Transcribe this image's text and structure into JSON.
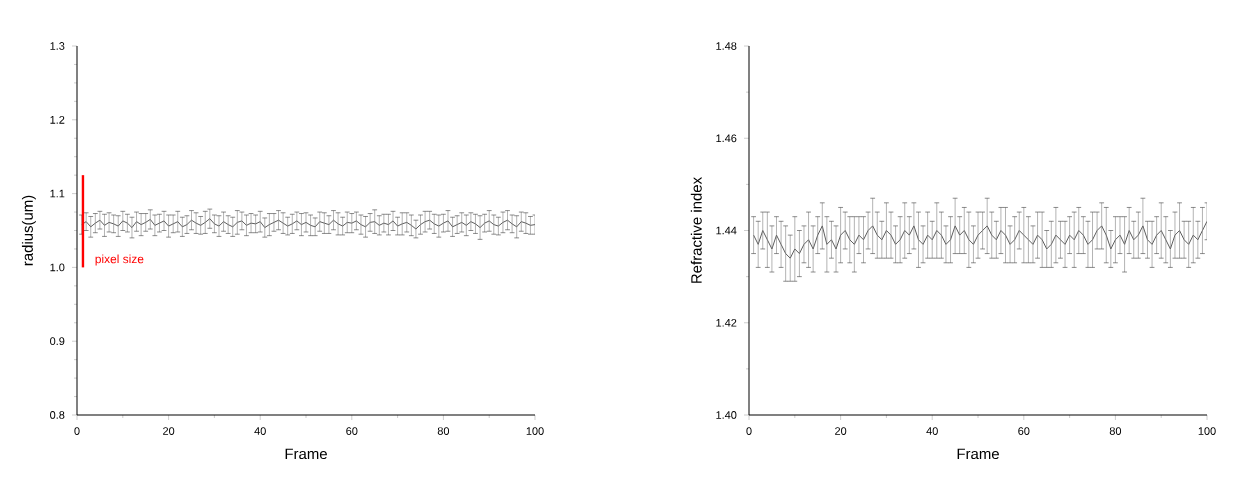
{
  "chart_data": [
    {
      "type": "line",
      "xlabel": "Frame",
      "ylabel": "radius(um)",
      "line_style": "solid",
      "xlim": [
        0,
        100
      ],
      "ylim": [
        0.8,
        1.3
      ],
      "xticks": [
        0,
        20,
        40,
        60,
        80,
        100
      ],
      "yticks": [
        0.8,
        0.9,
        {
          "value": 1.0,
          "label": "1.0"
        },
        1.1,
        1.2,
        1.3
      ],
      "x": [
        1,
        2,
        3,
        4,
        5,
        6,
        7,
        8,
        9,
        10,
        11,
        12,
        13,
        14,
        15,
        16,
        17,
        18,
        19,
        20,
        21,
        22,
        23,
        24,
        25,
        26,
        27,
        28,
        29,
        30,
        31,
        32,
        33,
        34,
        35,
        36,
        37,
        38,
        39,
        40,
        41,
        42,
        43,
        44,
        45,
        46,
        47,
        48,
        49,
        50,
        51,
        52,
        53,
        54,
        55,
        56,
        57,
        58,
        59,
        60,
        61,
        62,
        63,
        64,
        65,
        66,
        67,
        68,
        69,
        70,
        71,
        72,
        73,
        74,
        75,
        76,
        77,
        78,
        79,
        80,
        81,
        82,
        83,
        84,
        85,
        86,
        87,
        88,
        89,
        90,
        91,
        92,
        93,
        94,
        95,
        96,
        97,
        98,
        99,
        100
      ],
      "series": [
        {
          "color": "#333333",
          "values": [
            1.058,
            1.062,
            1.055,
            1.06,
            1.064,
            1.057,
            1.061,
            1.059,
            1.056,
            1.063,
            1.06,
            1.054,
            1.062,
            1.058,
            1.061,
            1.065,
            1.057,
            1.06,
            1.063,
            1.056,
            1.059,
            1.062,
            1.055,
            1.058,
            1.064,
            1.06,
            1.057,
            1.061,
            1.066,
            1.059,
            1.056,
            1.062,
            1.058,
            1.055,
            1.061,
            1.063,
            1.057,
            1.06,
            1.059,
            1.062,
            1.054,
            1.058,
            1.061,
            1.064,
            1.06,
            1.056,
            1.059,
            1.063,
            1.058,
            1.061,
            1.057,
            1.055,
            1.062,
            1.06,
            1.058,
            1.064,
            1.059,
            1.056,
            1.061,
            1.06,
            1.063,
            1.058,
            1.055,
            1.061,
            1.062,
            1.057,
            1.06,
            1.058,
            1.063,
            1.056,
            1.059,
            1.061,
            1.057,
            1.052,
            1.058,
            1.062,
            1.064,
            1.059,
            1.056,
            1.06,
            1.063,
            1.055,
            1.058,
            1.061,
            1.057,
            1.062,
            1.059,
            1.054,
            1.06,
            1.063,
            1.058,
            1.056,
            1.061,
            1.064,
            1.059,
            1.055,
            1.062,
            1.06,
            1.057,
            1.058
          ],
          "errors": [
            0.013,
            0.012,
            0.014,
            0.013,
            0.012,
            0.015,
            0.013,
            0.012,
            0.014,
            0.013,
            0.012,
            0.014,
            0.013,
            0.015,
            0.012,
            0.013,
            0.014,
            0.012,
            0.013,
            0.015,
            0.012,
            0.014,
            0.013,
            0.012,
            0.013,
            0.014,
            0.012,
            0.015,
            0.013,
            0.012,
            0.014,
            0.013,
            0.012,
            0.013,
            0.016,
            0.012,
            0.014,
            0.013,
            0.012,
            0.014,
            0.013,
            0.015,
            0.012,
            0.013,
            0.014,
            0.012,
            0.013,
            0.012,
            0.015,
            0.013,
            0.014,
            0.012,
            0.013,
            0.014,
            0.012,
            0.013,
            0.015,
            0.012,
            0.014,
            0.013,
            0.012,
            0.013,
            0.014,
            0.012,
            0.016,
            0.013,
            0.012,
            0.014,
            0.013,
            0.012,
            0.015,
            0.013,
            0.014,
            0.012,
            0.013,
            0.014,
            0.012,
            0.013,
            0.015,
            0.012,
            0.014,
            0.013,
            0.012,
            0.013,
            0.014,
            0.012,
            0.013,
            0.016,
            0.012,
            0.014,
            0.013,
            0.012,
            0.014,
            0.013,
            0.012,
            0.015,
            0.013,
            0.014,
            0.012,
            0.013
          ]
        },
        {
          "type": "line",
          "name": "pixel size",
          "color": "#ff0000",
          "x": [
            1.3,
            1.3
          ],
          "values": [
            1.0,
            1.125
          ]
        }
      ]
    },
    {
      "type": "line",
      "xlabel": "Frame",
      "ylabel": "Refractive index",
      "line_style": "solid",
      "xlim": [
        0,
        100
      ],
      "ylim": [
        1.4,
        1.48
      ],
      "xticks": [
        0,
        20,
        40,
        60,
        80,
        100
      ],
      "yticks": [
        {
          "value": 1.4,
          "label": "1.40"
        },
        1.42,
        1.44,
        1.46,
        1.48
      ],
      "x": [
        1,
        2,
        3,
        4,
        5,
        6,
        7,
        8,
        9,
        10,
        11,
        12,
        13,
        14,
        15,
        16,
        17,
        18,
        19,
        20,
        21,
        22,
        23,
        24,
        25,
        26,
        27,
        28,
        29,
        30,
        31,
        32,
        33,
        34,
        35,
        36,
        37,
        38,
        39,
        40,
        41,
        42,
        43,
        44,
        45,
        46,
        47,
        48,
        49,
        50,
        51,
        52,
        53,
        54,
        55,
        56,
        57,
        58,
        59,
        60,
        61,
        62,
        63,
        64,
        65,
        66,
        67,
        68,
        69,
        70,
        71,
        72,
        73,
        74,
        75,
        76,
        77,
        78,
        79,
        80,
        81,
        82,
        83,
        84,
        85,
        86,
        87,
        88,
        89,
        90,
        91,
        92,
        93,
        94,
        95,
        96,
        97,
        98,
        99,
        100
      ],
      "series": [
        {
          "color": "#333333",
          "values": [
            1.439,
            1.437,
            1.44,
            1.438,
            1.436,
            1.439,
            1.437,
            1.435,
            1.434,
            1.436,
            1.435,
            1.437,
            1.438,
            1.436,
            1.439,
            1.441,
            1.437,
            1.438,
            1.436,
            1.439,
            1.44,
            1.438,
            1.437,
            1.439,
            1.438,
            1.44,
            1.441,
            1.439,
            1.438,
            1.44,
            1.439,
            1.437,
            1.438,
            1.44,
            1.439,
            1.441,
            1.438,
            1.437,
            1.439,
            1.438,
            1.44,
            1.439,
            1.437,
            1.438,
            1.441,
            1.439,
            1.44,
            1.438,
            1.437,
            1.439,
            1.44,
            1.441,
            1.439,
            1.438,
            1.44,
            1.439,
            1.437,
            1.438,
            1.44,
            1.439,
            1.438,
            1.437,
            1.439,
            1.438,
            1.436,
            1.437,
            1.439,
            1.438,
            1.437,
            1.439,
            1.438,
            1.44,
            1.439,
            1.437,
            1.438,
            1.44,
            1.441,
            1.439,
            1.436,
            1.438,
            1.439,
            1.437,
            1.44,
            1.438,
            1.439,
            1.441,
            1.438,
            1.437,
            1.439,
            1.44,
            1.438,
            1.436,
            1.439,
            1.44,
            1.438,
            1.437,
            1.439,
            1.438,
            1.44,
            1.442
          ],
          "errors": [
            0.004,
            0.005,
            0.004,
            0.006,
            0.005,
            0.004,
            0.005,
            0.006,
            0.005,
            0.007,
            0.005,
            0.004,
            0.006,
            0.005,
            0.004,
            0.005,
            0.006,
            0.004,
            0.005,
            0.006,
            0.004,
            0.005,
            0.006,
            0.004,
            0.005,
            0.004,
            0.006,
            0.005,
            0.004,
            0.006,
            0.005,
            0.004,
            0.005,
            0.006,
            0.004,
            0.005,
            0.006,
            0.004,
            0.005,
            0.004,
            0.006,
            0.005,
            0.004,
            0.005,
            0.006,
            0.004,
            0.005,
            0.006,
            0.004,
            0.005,
            0.004,
            0.006,
            0.005,
            0.004,
            0.005,
            0.006,
            0.004,
            0.005,
            0.004,
            0.006,
            0.005,
            0.004,
            0.005,
            0.006,
            0.004,
            0.005,
            0.006,
            0.004,
            0.005,
            0.004,
            0.006,
            0.005,
            0.004,
            0.005,
            0.006,
            0.004,
            0.005,
            0.006,
            0.004,
            0.005,
            0.004,
            0.006,
            0.005,
            0.004,
            0.005,
            0.006,
            0.004,
            0.005,
            0.004,
            0.006,
            0.005,
            0.004,
            0.005,
            0.006,
            0.004,
            0.005,
            0.006,
            0.004,
            0.005,
            0.004
          ]
        }
      ]
    }
  ]
}
